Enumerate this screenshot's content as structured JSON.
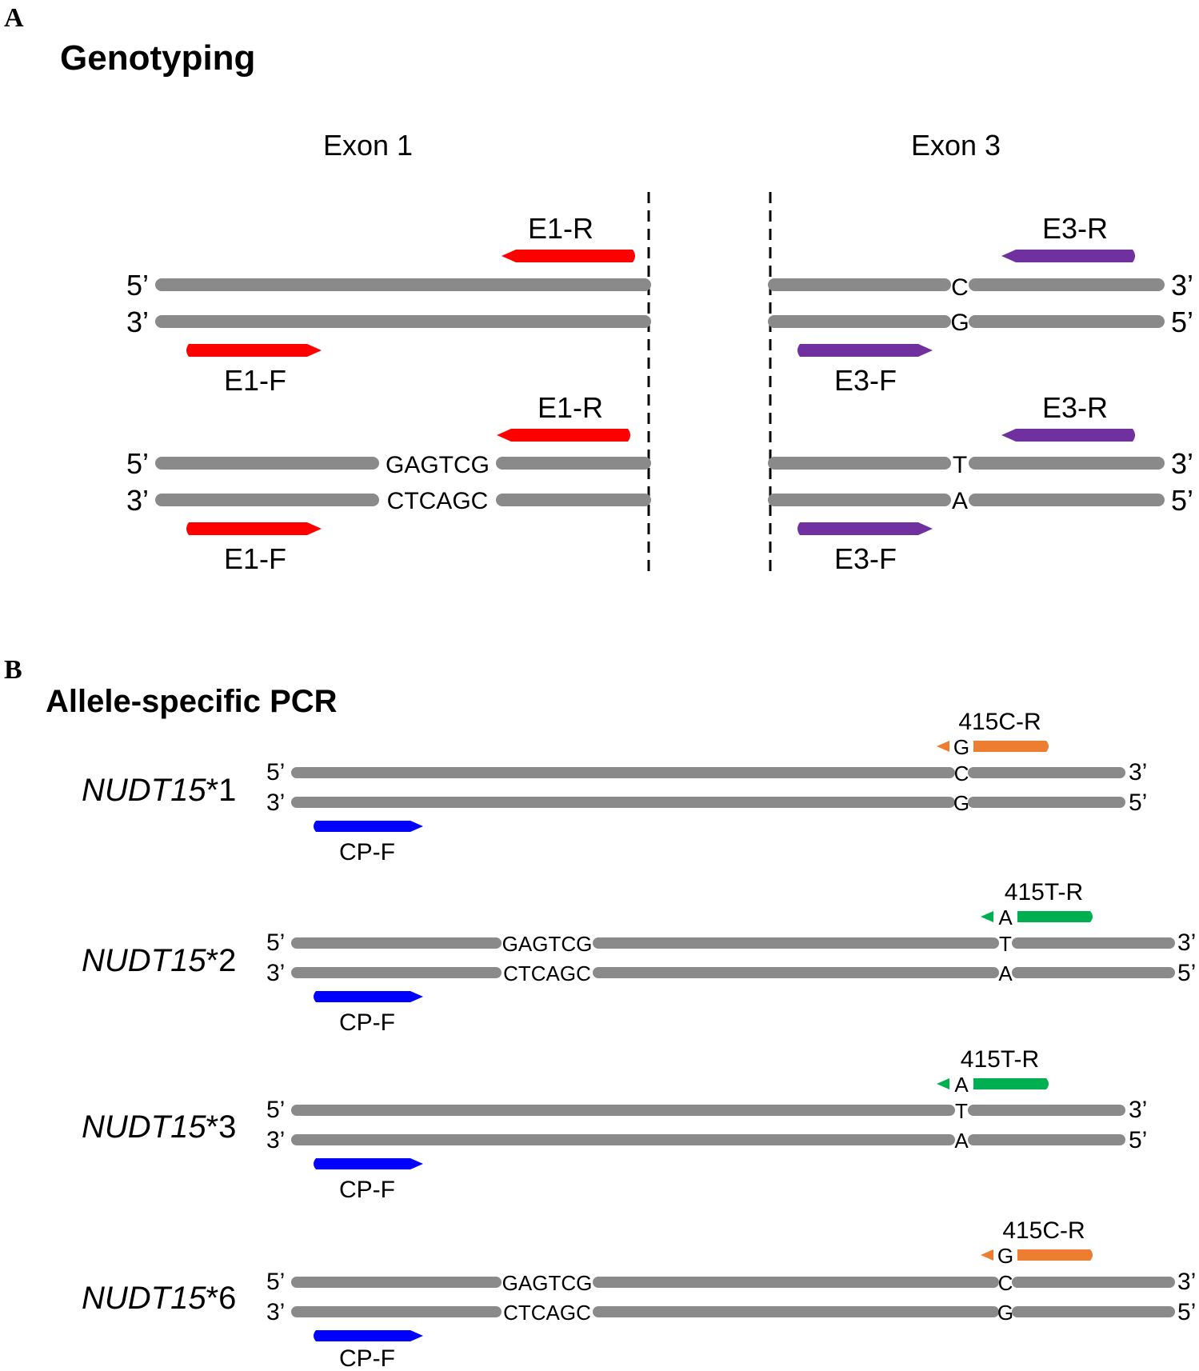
{
  "panelA": {
    "letter": "A",
    "title": "Genotyping",
    "exon1_label": "Exon 1",
    "exon3_label": "Exon 3",
    "five_prime": "5’",
    "three_prime": "3’",
    "primers": {
      "e1r": "E1-R",
      "e1f": "E1-F",
      "e3r": "E3-R",
      "e3f": "E3-F"
    },
    "row1": {
      "top_base": "C",
      "bottom_base": "G"
    },
    "row2": {
      "insert_top": "GAGTCG",
      "insert_bottom": "CTCAGC",
      "top_base": "T",
      "bottom_base": "A"
    }
  },
  "panelB": {
    "letter": "B",
    "title": "Allele-specific PCR",
    "common_primer": "CP-F",
    "five_prime": "5’",
    "three_prime": "3’",
    "alleles": [
      {
        "gene": "NUDT15",
        "suffix": "*1",
        "primer": "415C-R",
        "primer_base": "G",
        "top_base": "C",
        "bottom_base": "G"
      },
      {
        "gene": "NUDT15",
        "suffix": "*2",
        "primer": "415T-R",
        "primer_base": "A",
        "top_base": "T",
        "bottom_base": "A",
        "insert_top": "GAGTCG",
        "insert_bottom": "CTCAGC"
      },
      {
        "gene": "NUDT15",
        "suffix": "*3",
        "primer": "415T-R",
        "primer_base": "A",
        "top_base": "T",
        "bottom_base": "A"
      },
      {
        "gene": "NUDT15",
        "suffix": "*6",
        "primer": "415C-R",
        "primer_base": "G",
        "top_base": "C",
        "bottom_base": "G",
        "insert_top": "GAGTCG",
        "insert_bottom": "CTCAGC"
      }
    ]
  },
  "colors": {
    "strand": "#8a8a8a",
    "exon1_primer": "#ff0000",
    "exon3_primer": "#7030a0",
    "common_primer": "#0000ff",
    "primer_415C": "#ed7d31",
    "primer_415T": "#00b050"
  }
}
